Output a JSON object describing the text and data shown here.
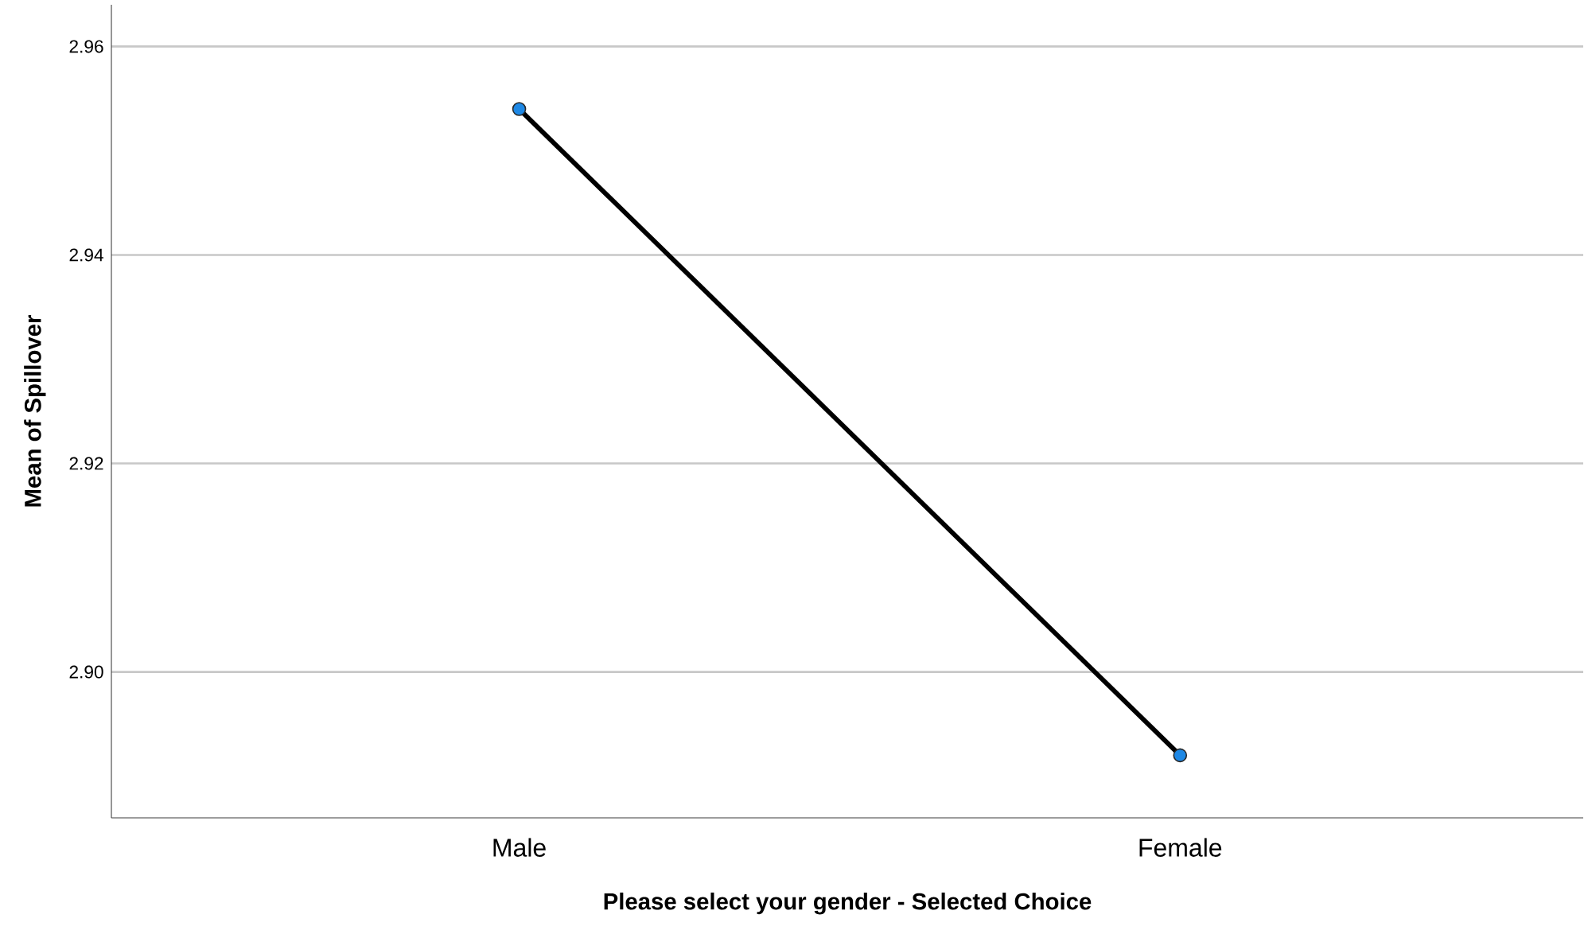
{
  "chart_data": {
    "type": "line",
    "xlabel": "Please select your gender - Selected Choice",
    "ylabel": "Mean of Spillover",
    "categories": [
      "Male",
      "Female"
    ],
    "series": [
      {
        "color": "#000000",
        "values": [
          2.954,
          2.892
        ]
      }
    ],
    "ylim": [
      2.886,
      2.964
    ],
    "yticks": [
      {
        "value": 2.9,
        "label": "2.90"
      },
      {
        "value": 2.92,
        "label": "2.92"
      },
      {
        "value": 2.94,
        "label": "2.94"
      },
      {
        "value": 2.96,
        "label": "2.96"
      }
    ],
    "grid": "y",
    "marker": "circle",
    "line_style": "solid"
  }
}
